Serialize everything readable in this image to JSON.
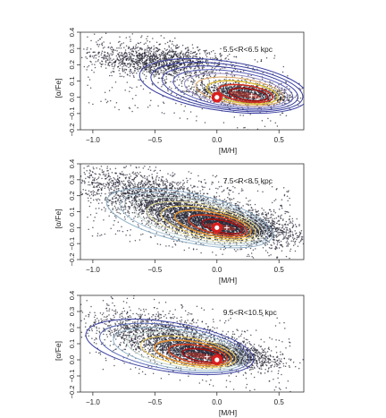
{
  "chart_data": [
    {
      "type": "scatter",
      "annotation": "5.5<R<6.5 kpc",
      "xlabel": "[M/H]",
      "ylabel": "[α/Fe]",
      "xlim": [
        -1.1,
        0.7
      ],
      "ylim": [
        -0.2,
        0.4
      ],
      "xticks": [
        -1.0,
        -0.5,
        0.0,
        0.5
      ],
      "xtick_labels": [
        "−1.0",
        "−0.5",
        "0.0",
        "0.5"
      ],
      "yticks": [
        -0.2,
        -0.1,
        0.0,
        0.1,
        0.2,
        0.3,
        0.4
      ],
      "ytick_labels": [
        "−0.2",
        "−0.1",
        "0.0",
        "0.1",
        "0.2",
        "0.3",
        "0.4"
      ],
      "grid": false,
      "density_peak": {
        "x": 0.28,
        "y": 0.01
      },
      "solar_marker": {
        "x": 0.0,
        "y": 0.0
      },
      "contour_colors": [
        "#3a3fa0",
        "#3a3fa0",
        "#3a3fa0",
        "#5a5fb8",
        "#9a8fc4",
        "#d9a060",
        "#e0c040",
        "#d03020",
        "#a01010"
      ]
    },
    {
      "type": "scatter",
      "annotation": "7.5<R<8.5 kpc",
      "xlabel": "[M/H]",
      "ylabel": "[α/Fe]",
      "xlim": [
        -1.1,
        0.7
      ],
      "ylim": [
        -0.2,
        0.4
      ],
      "xticks": [
        -1.0,
        -0.5,
        0.0,
        0.5
      ],
      "xtick_labels": [
        "−1.0",
        "−0.5",
        "0.0",
        "0.5"
      ],
      "yticks": [
        -0.2,
        -0.1,
        0.0,
        0.1,
        0.2,
        0.3,
        0.4
      ],
      "ytick_labels": [
        "−0.2",
        "−0.1",
        "0.0",
        "0.1",
        "0.2",
        "0.3",
        "0.4"
      ],
      "grid": false,
      "density_peak": {
        "x": 0.08,
        "y": 0.0
      },
      "solar_marker": {
        "x": 0.0,
        "y": 0.0
      },
      "contour_colors": [
        "#8fb0c8",
        "#a9c4d4",
        "#c8d8d0",
        "#e8e0a0",
        "#f0d060",
        "#e09030",
        "#d04020",
        "#a01010"
      ]
    },
    {
      "type": "scatter",
      "annotation": "9.5<R<10.5 kpc",
      "xlabel": "[M/H]",
      "ylabel": "[α/Fe]",
      "xlim": [
        -1.1,
        0.7
      ],
      "ylim": [
        -0.2,
        0.4
      ],
      "xticks": [
        -1.0,
        -0.5,
        0.0,
        0.5
      ],
      "xtick_labels": [
        "−1.0",
        "−0.5",
        "0.0",
        "0.5"
      ],
      "yticks": [
        -0.2,
        -0.1,
        0.0,
        0.1,
        0.2,
        0.3,
        0.4
      ],
      "ytick_labels": [
        "−0.2",
        "−0.1",
        "0.0",
        "0.1",
        "0.2",
        "0.3",
        "0.4"
      ],
      "grid": false,
      "density_peak": {
        "x": -0.08,
        "y": 0.02
      },
      "solar_marker": {
        "x": 0.0,
        "y": 0.0
      },
      "contour_colors": [
        "#3a3fa0",
        "#5a6ab8",
        "#8fb0c8",
        "#c8d8d0",
        "#f0d060",
        "#e09030",
        "#d04020",
        "#a01010"
      ]
    }
  ]
}
